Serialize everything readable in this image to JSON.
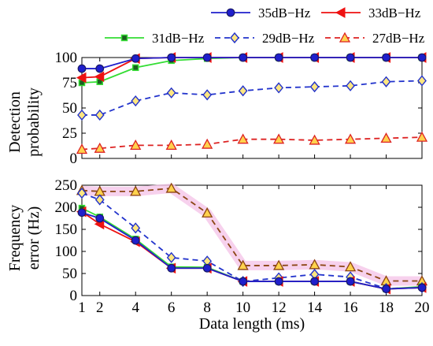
{
  "chart_data": [
    {
      "type": "line",
      "ylabel": "Detection probability",
      "xlabel": "",
      "xlim": [
        1,
        20
      ],
      "ylim": [
        0,
        100
      ],
      "x_ticks": [
        1,
        2,
        4,
        6,
        8,
        10,
        12,
        14,
        16,
        18,
        20
      ],
      "y_ticks": [
        0,
        25,
        50,
        75,
        100
      ],
      "x": [
        1,
        2,
        4,
        6,
        8,
        10,
        12,
        14,
        16,
        18,
        20
      ],
      "legend_position": "top",
      "series": [
        {
          "name": "35dB−Hz",
          "color": "#1f1fcc",
          "marker": "circle",
          "dash": "solid",
          "values": [
            89,
            89,
            99,
            100,
            100,
            100,
            100,
            100,
            100,
            100,
            100
          ]
        },
        {
          "name": "33dB−Hz",
          "color": "#ee1111",
          "marker": "triangle-left",
          "dash": "solid",
          "values": [
            80,
            81,
            99,
            100,
            100,
            100,
            100,
            100,
            100,
            100,
            100
          ]
        },
        {
          "name": "31dB−Hz",
          "color": "#33dd33",
          "marker": "square",
          "dash": "solid",
          "values": [
            75,
            76,
            90,
            97,
            99,
            100,
            100,
            100,
            100,
            100,
            100
          ]
        },
        {
          "name": "29dB−Hz",
          "color": "#2233cc",
          "marker": "diamond",
          "dash": "dashed",
          "values": [
            43,
            43,
            57,
            65,
            63,
            67,
            70,
            71,
            72,
            76,
            77
          ]
        },
        {
          "name": "27dB−Hz",
          "color": "#dd2222",
          "marker": "triangle-up",
          "dash": "dashed",
          "values": [
            9,
            10,
            13,
            13,
            14,
            19,
            19,
            18,
            19,
            20,
            21
          ]
        }
      ]
    },
    {
      "type": "line",
      "ylabel": "Frequency error (Hz)",
      "xlabel": "Data length (ms)",
      "xlim": [
        1,
        20
      ],
      "ylim": [
        0,
        250
      ],
      "x_ticks": [
        1,
        2,
        4,
        6,
        8,
        10,
        12,
        14,
        16,
        18,
        20
      ],
      "y_ticks": [
        0,
        50,
        100,
        150,
        200,
        250
      ],
      "x": [
        1,
        2,
        4,
        6,
        8,
        10,
        12,
        14,
        16,
        18,
        20
      ],
      "series": [
        {
          "name": "35dB−Hz",
          "color": "#1f1fcc",
          "marker": "circle",
          "dash": "solid",
          "values": [
            188,
            175,
            125,
            62,
            62,
            32,
            32,
            32,
            32,
            15,
            18
          ]
        },
        {
          "name": "33dB−Hz",
          "color": "#ee1111",
          "marker": "triangle-left",
          "dash": "solid",
          "values": [
            190,
            162,
            122,
            62,
            62,
            32,
            32,
            32,
            32,
            15,
            18
          ]
        },
        {
          "name": "31dB−Hz",
          "color": "#33dd33",
          "marker": "square",
          "dash": "solid",
          "values": [
            198,
            178,
            128,
            65,
            64,
            32,
            32,
            32,
            32,
            15,
            20
          ]
        },
        {
          "name": "29dB−Hz",
          "color": "#2233cc",
          "marker": "diamond",
          "dash": "dashed",
          "values": [
            232,
            217,
            153,
            86,
            78,
            32,
            40,
            48,
            42,
            16,
            18
          ]
        },
        {
          "name": "27dB−Hz",
          "color": "#8b4513",
          "marker": "triangle-up",
          "dash": "dashed",
          "values": [
            238,
            236,
            236,
            243,
            187,
            68,
            68,
            70,
            65,
            33,
            33
          ]
        }
      ]
    }
  ]
}
